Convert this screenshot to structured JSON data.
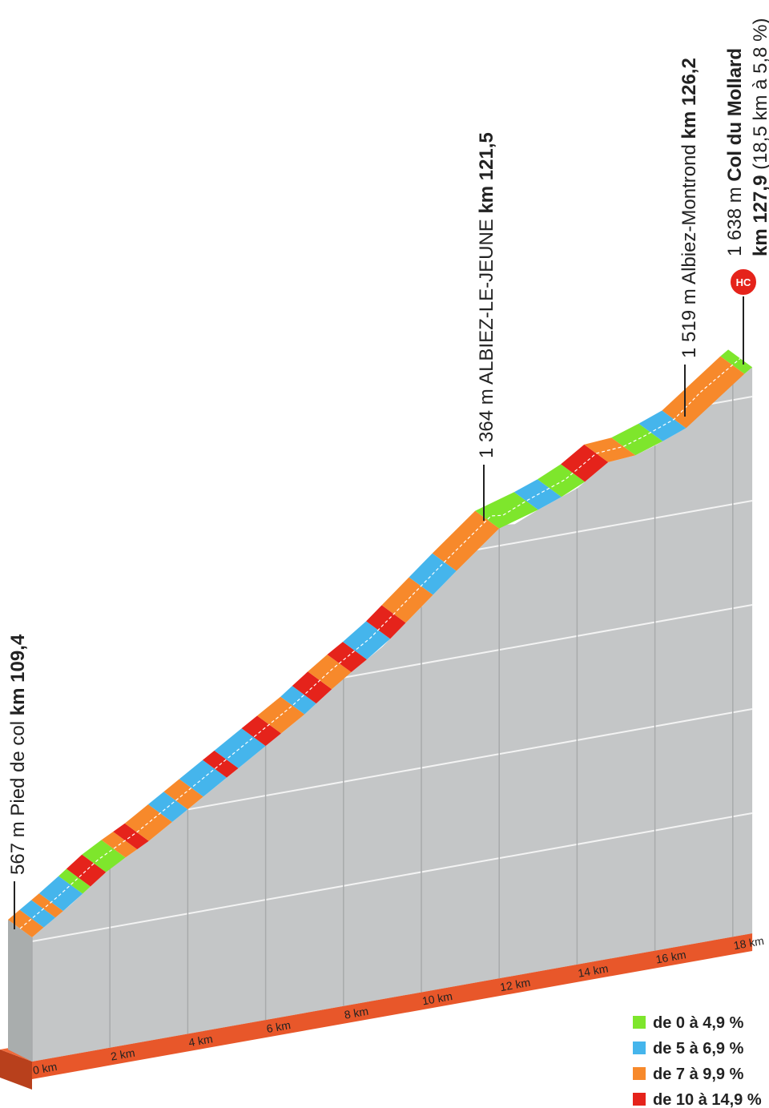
{
  "chart_data": {
    "type": "climb-profile",
    "profile": {
      "km": [
        0,
        1,
        2,
        3,
        4,
        5,
        6,
        7,
        8,
        9,
        10,
        11,
        12.1,
        12.4,
        13,
        14,
        14.8,
        15.5,
        16,
        16.8,
        17.5,
        18.5
      ],
      "elevation": [
        567,
        630,
        700,
        750,
        810,
        870,
        930,
        990,
        1060,
        1120,
        1200,
        1280,
        1364,
        1360,
        1385,
        1420,
        1470,
        1475,
        1490,
        1519,
        1575,
        1638
      ]
    },
    "xticks": [
      {
        "value": 0,
        "label": "0 km"
      },
      {
        "value": 2,
        "label": "2 km"
      },
      {
        "value": 4,
        "label": "4 km"
      },
      {
        "value": 6,
        "label": "6 km"
      },
      {
        "value": 8,
        "label": "8 km"
      },
      {
        "value": 10,
        "label": "10 km"
      },
      {
        "value": 12,
        "label": "12 km"
      },
      {
        "value": 14,
        "label": "14 km"
      },
      {
        "value": 16,
        "label": "16 km"
      },
      {
        "value": 18,
        "label": "18 km"
      }
    ],
    "segments": [
      {
        "from": 0,
        "to": 0.3,
        "grade": 2
      },
      {
        "from": 0.3,
        "to": 0.6,
        "grade": 1
      },
      {
        "from": 0.6,
        "to": 0.8,
        "grade": 2
      },
      {
        "from": 0.8,
        "to": 1.3,
        "grade": 1
      },
      {
        "from": 1.3,
        "to": 1.5,
        "grade": 0
      },
      {
        "from": 1.5,
        "to": 1.9,
        "grade": 3
      },
      {
        "from": 1.9,
        "to": 2.4,
        "grade": 0
      },
      {
        "from": 2.4,
        "to": 2.7,
        "grade": 2
      },
      {
        "from": 2.7,
        "to": 3.0,
        "grade": 3
      },
      {
        "from": 3.0,
        "to": 3.6,
        "grade": 2
      },
      {
        "from": 3.6,
        "to": 4.0,
        "grade": 1
      },
      {
        "from": 4.0,
        "to": 4.4,
        "grade": 2
      },
      {
        "from": 4.4,
        "to": 5.0,
        "grade": 1
      },
      {
        "from": 5.0,
        "to": 5.3,
        "grade": 3
      },
      {
        "from": 5.3,
        "to": 6.0,
        "grade": 1
      },
      {
        "from": 6.0,
        "to": 6.4,
        "grade": 3
      },
      {
        "from": 6.4,
        "to": 7.0,
        "grade": 2
      },
      {
        "from": 7.0,
        "to": 7.3,
        "grade": 1
      },
      {
        "from": 7.3,
        "to": 7.7,
        "grade": 3
      },
      {
        "from": 7.7,
        "to": 8.2,
        "grade": 2
      },
      {
        "from": 8.2,
        "to": 8.6,
        "grade": 3
      },
      {
        "from": 8.6,
        "to": 9.2,
        "grade": 1
      },
      {
        "from": 9.2,
        "to": 9.6,
        "grade": 3
      },
      {
        "from": 9.6,
        "to": 10.3,
        "grade": 2
      },
      {
        "from": 10.3,
        "to": 10.9,
        "grade": 1
      },
      {
        "from": 10.9,
        "to": 12.0,
        "grade": 2
      },
      {
        "from": 12.0,
        "to": 13.0,
        "grade": 0
      },
      {
        "from": 13.0,
        "to": 13.6,
        "grade": 1
      },
      {
        "from": 13.6,
        "to": 14.2,
        "grade": 0
      },
      {
        "from": 14.2,
        "to": 14.8,
        "grade": 3
      },
      {
        "from": 14.8,
        "to": 15.5,
        "grade": 2
      },
      {
        "from": 15.5,
        "to": 16.2,
        "grade": 0
      },
      {
        "from": 16.2,
        "to": 16.8,
        "grade": 1
      },
      {
        "from": 16.8,
        "to": 18.3,
        "grade": 2
      },
      {
        "from": 18.3,
        "to": 18.5,
        "grade": 0
      }
    ],
    "legend": [
      {
        "label": "de 0 à 4,9 %",
        "color": "#7ee62c"
      },
      {
        "label": "de 5 à 6,9 %",
        "color": "#45b5ec"
      },
      {
        "label": "de 7 à 9,9 %",
        "color": "#f7892b"
      },
      {
        "label": "de 10 à 14,9 %",
        "color": "#e5231b"
      }
    ],
    "annotations": [
      {
        "parts": [
          {
            "text": "567 m Pied de col ",
            "bold": false
          },
          {
            "text": "km 109,4",
            "bold": true
          }
        ]
      },
      {
        "parts": [
          {
            "text": "1 364 m ALBIEZ-LE-JEUNE ",
            "bold": false
          },
          {
            "text": "km 121,5",
            "bold": true
          }
        ]
      },
      {
        "parts": [
          {
            "text": "1 519 m Albiez-Montrond ",
            "bold": false
          },
          {
            "text": "km 126,2",
            "bold": true
          }
        ]
      },
      {
        "parts": [
          {
            "text": "1 638 m ",
            "bold": false
          },
          {
            "text": "Col du Mollard",
            "bold": true
          }
        ],
        "second_line": [
          {
            "text": "km 127,9",
            "bold": true
          },
          {
            "text": "  (18,5 km à 5,8 %)",
            "bold": false
          }
        ],
        "category": "HC"
      }
    ]
  }
}
